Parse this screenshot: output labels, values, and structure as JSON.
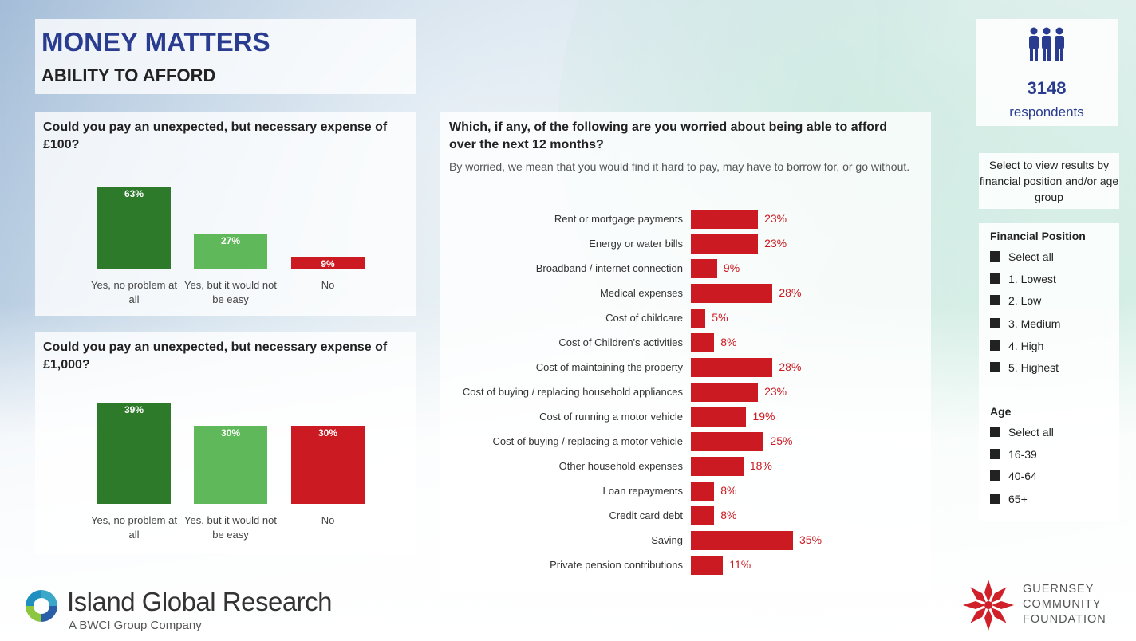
{
  "header": {
    "title": "MONEY MATTERS",
    "subtitle": "ABILITY TO AFFORD"
  },
  "respondents": {
    "count": "3148",
    "label": "respondents"
  },
  "filters": {
    "instruction": "Select to view results by financial position and/or age group",
    "financial_position": {
      "heading": "Financial Position",
      "items": [
        "Select all",
        "1. Lowest",
        "2. Low",
        "3. Medium",
        "4. High",
        "5. Highest"
      ]
    },
    "age": {
      "heading": "Age",
      "items": [
        "Select all",
        "16-39",
        "40-64",
        "65+"
      ]
    }
  },
  "colors": {
    "dark_green": "#2d7a2a",
    "light_green": "#5fb85a",
    "red": "#cc1a22",
    "title_blue": "#2a3c8f"
  },
  "logos": {
    "igr_name": "Island Global Research",
    "igr_tag": "A BWCI Group Company",
    "gcf_line1": "GUERNSEY",
    "gcf_line2": "COMMUNITY",
    "gcf_line3": "FOUNDATION"
  },
  "chart_data": [
    {
      "type": "bar",
      "title": "Could you pay an unexpected, but necessary expense of £100?",
      "categories": [
        "Yes, no problem at all",
        "Yes, but it would not be easy",
        "No"
      ],
      "values": [
        63,
        27,
        9
      ],
      "labels": [
        "63%",
        "27%",
        "9%"
      ],
      "colors": [
        "#2d7a2a",
        "#5fb85a",
        "#cc1a22"
      ],
      "ylim": [
        0,
        63
      ]
    },
    {
      "type": "bar",
      "title": "Could you pay an unexpected, but necessary expense of £1,000?",
      "categories": [
        "Yes, no problem at all",
        "Yes, but it would not be easy",
        "No"
      ],
      "values": [
        39,
        30,
        30
      ],
      "labels": [
        "39%",
        "30%",
        "30%"
      ],
      "colors": [
        "#2d7a2a",
        "#5fb85a",
        "#cc1a22"
      ],
      "ylim": [
        0,
        39
      ]
    },
    {
      "type": "bar",
      "orientation": "horizontal",
      "title": "Which, if any, of the following are you worried about being able to afford over the next 12 months?",
      "subtitle": "By worried, we mean that you would find it hard to pay, may have to borrow for, or go without.",
      "categories": [
        "Rent or mortgage payments",
        "Energy or water bills",
        "Broadband / internet connection",
        "Medical expenses",
        "Cost of childcare",
        "Cost of Children's activities",
        "Cost of maintaining the property",
        "Cost of buying / replacing household appliances",
        "Cost of running a motor vehicle",
        "Cost of buying / replacing a motor vehicle",
        "Other household expenses",
        "Loan repayments",
        "Credit card debt",
        "Saving",
        "Private pension contributions"
      ],
      "values": [
        23,
        23,
        9,
        28,
        5,
        8,
        28,
        23,
        19,
        25,
        18,
        8,
        8,
        35,
        11
      ],
      "labels": [
        "23%",
        "23%",
        "9%",
        "28%",
        "5%",
        "8%",
        "28%",
        "23%",
        "19%",
        "25%",
        "18%",
        "8%",
        "8%",
        "35%",
        "11%"
      ],
      "color": "#cc1a22"
    }
  ]
}
